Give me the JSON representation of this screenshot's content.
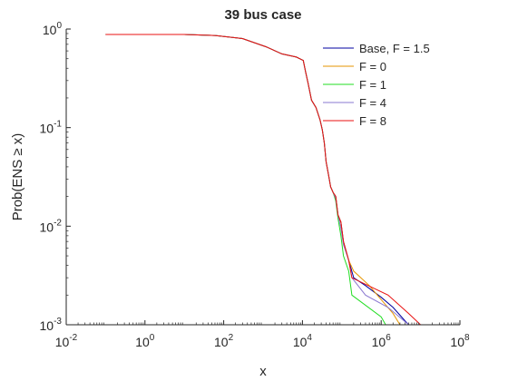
{
  "chart_data": {
    "type": "line",
    "title": "39 bus case",
    "xlabel": "x",
    "ylabel": "Prob(ENS ≥ x)",
    "xscale": "log",
    "yscale": "log",
    "xlim": [
      0.01,
      100000000
    ],
    "ylim": [
      0.001,
      1
    ],
    "x_ticks": [
      {
        "base": "10",
        "exp": "-2",
        "value": 0.01
      },
      {
        "base": "10",
        "exp": "0",
        "value": 1
      },
      {
        "base": "10",
        "exp": "2",
        "value": 100
      },
      {
        "base": "10",
        "exp": "4",
        "value": 10000
      },
      {
        "base": "10",
        "exp": "6",
        "value": 1000000
      },
      {
        "base": "10",
        "exp": "8",
        "value": 100000000
      }
    ],
    "y_ticks": [
      {
        "base": "10",
        "exp": "-3",
        "value": 0.001
      },
      {
        "base": "10",
        "exp": "-2",
        "value": 0.01
      },
      {
        "base": "10",
        "exp": "-1",
        "value": 0.1
      },
      {
        "base": "10",
        "exp": "0",
        "value": 1
      }
    ],
    "grid": false,
    "legend_position": "top-right",
    "series": [
      {
        "name": "Base, F = 1.5",
        "color": "#0000a0",
        "points": [
          [
            0.1,
            0.88
          ],
          [
            10,
            0.88
          ],
          [
            60,
            0.86
          ],
          [
            300,
            0.8
          ],
          [
            1200,
            0.66
          ],
          [
            3000,
            0.56
          ],
          [
            7000,
            0.52
          ],
          [
            9500,
            0.49
          ],
          [
            10500,
            0.48
          ],
          [
            12000,
            0.37
          ],
          [
            14000,
            0.28
          ],
          [
            17000,
            0.19
          ],
          [
            22000,
            0.16
          ],
          [
            28000,
            0.12
          ],
          [
            32000,
            0.095
          ],
          [
            36000,
            0.07
          ],
          [
            40000,
            0.045
          ],
          [
            46000,
            0.033
          ],
          [
            52000,
            0.025
          ],
          [
            60000,
            0.022
          ],
          [
            70000,
            0.02
          ],
          [
            80000,
            0.013
          ],
          [
            95000,
            0.011
          ],
          [
            110000,
            0.007
          ],
          [
            150000,
            0.0045
          ],
          [
            200000,
            0.003
          ],
          [
            400000,
            0.0025
          ],
          [
            1000000,
            0.0019
          ],
          [
            2000000,
            0.0015
          ],
          [
            4000000,
            0.0011
          ],
          [
            5000000,
            0.001
          ]
        ]
      },
      {
        "name": "F = 0",
        "color": "#e69500",
        "points": [
          [
            0.1,
            0.88
          ],
          [
            10,
            0.88
          ],
          [
            60,
            0.86
          ],
          [
            300,
            0.8
          ],
          [
            1200,
            0.66
          ],
          [
            3000,
            0.56
          ],
          [
            7000,
            0.52
          ],
          [
            9500,
            0.49
          ],
          [
            10500,
            0.48
          ],
          [
            12000,
            0.37
          ],
          [
            14000,
            0.28
          ],
          [
            17000,
            0.19
          ],
          [
            22000,
            0.16
          ],
          [
            28000,
            0.12
          ],
          [
            32000,
            0.095
          ],
          [
            36000,
            0.07
          ],
          [
            40000,
            0.045
          ],
          [
            46000,
            0.033
          ],
          [
            52000,
            0.025
          ],
          [
            60000,
            0.022
          ],
          [
            70000,
            0.02
          ],
          [
            80000,
            0.013
          ],
          [
            95000,
            0.011
          ],
          [
            110000,
            0.007
          ],
          [
            150000,
            0.0045
          ],
          [
            200000,
            0.0035
          ],
          [
            500000,
            0.0025
          ],
          [
            1000000,
            0.0018
          ],
          [
            2000000,
            0.0013
          ],
          [
            3000000,
            0.001
          ]
        ]
      },
      {
        "name": "F = 1",
        "color": "#22dd22",
        "points": [
          [
            0.1,
            0.88
          ],
          [
            10,
            0.88
          ],
          [
            60,
            0.86
          ],
          [
            300,
            0.8
          ],
          [
            1200,
            0.66
          ],
          [
            3000,
            0.56
          ],
          [
            7000,
            0.52
          ],
          [
            9500,
            0.49
          ],
          [
            10500,
            0.48
          ],
          [
            12000,
            0.37
          ],
          [
            14000,
            0.28
          ],
          [
            17000,
            0.19
          ],
          [
            22000,
            0.16
          ],
          [
            28000,
            0.12
          ],
          [
            32000,
            0.095
          ],
          [
            36000,
            0.07
          ],
          [
            40000,
            0.045
          ],
          [
            46000,
            0.033
          ],
          [
            52000,
            0.025
          ],
          [
            60000,
            0.022
          ],
          [
            70000,
            0.018
          ],
          [
            80000,
            0.012
          ],
          [
            95000,
            0.008
          ],
          [
            110000,
            0.005
          ],
          [
            150000,
            0.0035
          ],
          [
            180000,
            0.002
          ],
          [
            1000000,
            0.0012
          ],
          [
            1300000,
            0.001
          ]
        ]
      },
      {
        "name": "F = 4",
        "color": "#8a78d0",
        "points": [
          [
            0.1,
            0.88
          ],
          [
            10,
            0.88
          ],
          [
            60,
            0.86
          ],
          [
            300,
            0.8
          ],
          [
            1200,
            0.66
          ],
          [
            3000,
            0.56
          ],
          [
            7000,
            0.52
          ],
          [
            9500,
            0.49
          ],
          [
            10500,
            0.48
          ],
          [
            12000,
            0.37
          ],
          [
            14000,
            0.28
          ],
          [
            17000,
            0.19
          ],
          [
            22000,
            0.16
          ],
          [
            28000,
            0.12
          ],
          [
            32000,
            0.095
          ],
          [
            36000,
            0.07
          ],
          [
            40000,
            0.045
          ],
          [
            46000,
            0.033
          ],
          [
            52000,
            0.025
          ],
          [
            60000,
            0.022
          ],
          [
            70000,
            0.019
          ],
          [
            80000,
            0.013
          ],
          [
            95000,
            0.0095
          ],
          [
            110000,
            0.0065
          ],
          [
            150000,
            0.0045
          ],
          [
            180000,
            0.003
          ],
          [
            400000,
            0.002
          ],
          [
            1500000,
            0.0015
          ],
          [
            5000000,
            0.001
          ]
        ]
      },
      {
        "name": "F = 8",
        "color": "#e81010",
        "points": [
          [
            0.1,
            0.88
          ],
          [
            10,
            0.88
          ],
          [
            60,
            0.86
          ],
          [
            300,
            0.8
          ],
          [
            1200,
            0.66
          ],
          [
            3000,
            0.56
          ],
          [
            7000,
            0.52
          ],
          [
            9500,
            0.49
          ],
          [
            10500,
            0.48
          ],
          [
            12000,
            0.37
          ],
          [
            14000,
            0.28
          ],
          [
            17000,
            0.19
          ],
          [
            22000,
            0.16
          ],
          [
            28000,
            0.12
          ],
          [
            32000,
            0.095
          ],
          [
            36000,
            0.07
          ],
          [
            40000,
            0.045
          ],
          [
            46000,
            0.033
          ],
          [
            52000,
            0.025
          ],
          [
            60000,
            0.022
          ],
          [
            70000,
            0.02
          ],
          [
            80000,
            0.013
          ],
          [
            95000,
            0.011
          ],
          [
            110000,
            0.007
          ],
          [
            150000,
            0.0045
          ],
          [
            180000,
            0.003
          ],
          [
            1500000,
            0.002
          ],
          [
            5000000,
            0.0013
          ],
          [
            10000000,
            0.001
          ]
        ]
      }
    ]
  }
}
